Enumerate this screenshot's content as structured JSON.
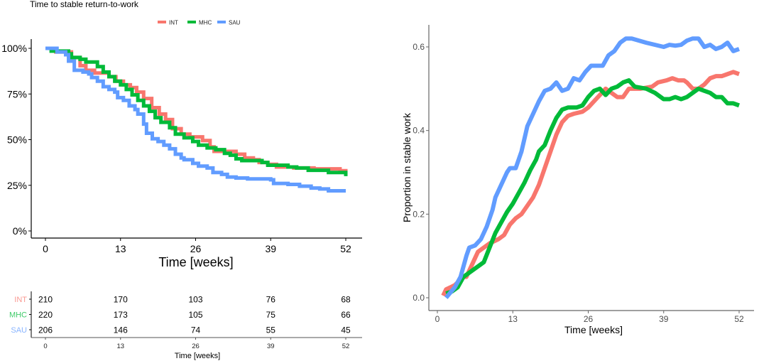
{
  "colors": {
    "INT": "#F8766D",
    "MHC": "#00BA38",
    "SAU": "#619CFF"
  },
  "chart_data": [
    {
      "type": "line",
      "step": true,
      "title": "Time to stable return-to-work",
      "xlabel": "Time [weeks]",
      "ylabel": "",
      "xlim": [
        0,
        52
      ],
      "ylim": [
        0,
        100
      ],
      "xticks": [
        "0",
        "13",
        "26",
        "39",
        "52"
      ],
      "yticks": [
        "0%",
        "25%",
        "50%",
        "75%",
        "100%"
      ],
      "grid": false,
      "legend": {
        "placement": "top",
        "entries": [
          "INT",
          "MHC",
          "SAU"
        ]
      },
      "series": [
        {
          "name": "INT",
          "points": [
            [
              0,
              100
            ],
            [
              1.8,
              98
            ],
            [
              4.5,
              95
            ],
            [
              6,
              90.5
            ],
            [
              7,
              88
            ],
            [
              8.5,
              86.5
            ],
            [
              11,
              84.5
            ],
            [
              12.2,
              82
            ],
            [
              13.5,
              80
            ],
            [
              14.7,
              78.5
            ],
            [
              15.8,
              76
            ],
            [
              17,
              72.5
            ],
            [
              18.4,
              67.5
            ],
            [
              19.7,
              64
            ],
            [
              20.8,
              61
            ],
            [
              22,
              56
            ],
            [
              23.5,
              53
            ],
            [
              25,
              51.5
            ],
            [
              27.2,
              49.5
            ],
            [
              28.5,
              46
            ],
            [
              29.2,
              43.6
            ],
            [
              33,
              42
            ],
            [
              34.5,
              40
            ],
            [
              36,
              39
            ],
            [
              37,
              37.5
            ],
            [
              38.5,
              36.5
            ],
            [
              40,
              35
            ],
            [
              43,
              34.5
            ],
            [
              46.5,
              34
            ],
            [
              51,
              33
            ],
            [
              52,
              32
            ]
          ]
        },
        {
          "name": "MHC",
          "points": [
            [
              0,
              100
            ],
            [
              1,
              98.5
            ],
            [
              4,
              97
            ],
            [
              4.5,
              95
            ],
            [
              6,
              94
            ],
            [
              7,
              92.5
            ],
            [
              9,
              90
            ],
            [
              10,
              87
            ],
            [
              11,
              84.5
            ],
            [
              12,
              82
            ],
            [
              13,
              80
            ],
            [
              14,
              77.5
            ],
            [
              15,
              74.5
            ],
            [
              16,
              71.5
            ],
            [
              17,
              68.5
            ],
            [
              18,
              65.5
            ],
            [
              19,
              62
            ],
            [
              20,
              59.5
            ],
            [
              21.5,
              56.5
            ],
            [
              22.5,
              53
            ],
            [
              24,
              51
            ],
            [
              25.5,
              49
            ],
            [
              26.5,
              47
            ],
            [
              28,
              45.5
            ],
            [
              29.5,
              44.5
            ],
            [
              31,
              42.5
            ],
            [
              32,
              41.5
            ],
            [
              33,
              39.5
            ],
            [
              34,
              38.5
            ],
            [
              37.5,
              37.5
            ],
            [
              38.5,
              36
            ],
            [
              42,
              35
            ],
            [
              43.5,
              34.5
            ],
            [
              45.5,
              33.2
            ],
            [
              49,
              32
            ],
            [
              52,
              30
            ]
          ]
        },
        {
          "name": "SAU",
          "points": [
            [
              0,
              100
            ],
            [
              2,
              98
            ],
            [
              3.5,
              96.5
            ],
            [
              4,
              93
            ],
            [
              5,
              88
            ],
            [
              6.5,
              87
            ],
            [
              7.5,
              86
            ],
            [
              8,
              84
            ],
            [
              9,
              82
            ],
            [
              10,
              79
            ],
            [
              11,
              77.5
            ],
            [
              12,
              76
            ],
            [
              12.5,
              73
            ],
            [
              13.5,
              71.5
            ],
            [
              14.5,
              68.5
            ],
            [
              15.5,
              66.5
            ],
            [
              16,
              64
            ],
            [
              17,
              58.5
            ],
            [
              17.5,
              53.5
            ],
            [
              18.5,
              50.5
            ],
            [
              19.5,
              49
            ],
            [
              20.5,
              47
            ],
            [
              21.5,
              45
            ],
            [
              22.5,
              42
            ],
            [
              23.5,
              40
            ],
            [
              24,
              39
            ],
            [
              25.5,
              37
            ],
            [
              26.5,
              35.5
            ],
            [
              28,
              34.5
            ],
            [
              29,
              32
            ],
            [
              30.5,
              31
            ],
            [
              31.5,
              29.5
            ],
            [
              33,
              29
            ],
            [
              35,
              28.5
            ],
            [
              39,
              28
            ],
            [
              39.5,
              26
            ],
            [
              42,
              25.5
            ],
            [
              44,
              24.5
            ],
            [
              46,
              23.5
            ],
            [
              47.5,
              23
            ],
            [
              49,
              22
            ],
            [
              52,
              22
            ]
          ]
        }
      ]
    },
    {
      "type": "table",
      "xlabel": "Time [weeks]",
      "xticks": [
        "0",
        "13",
        "26",
        "39",
        "52"
      ],
      "rows": [
        {
          "name": "INT",
          "values": [
            "210",
            "170",
            "103",
            "76",
            "68"
          ]
        },
        {
          "name": "MHC",
          "values": [
            "220",
            "173",
            "105",
            "75",
            "66"
          ]
        },
        {
          "name": "SAU",
          "values": [
            "206",
            "146",
            "74",
            "55",
            "45"
          ]
        }
      ]
    },
    {
      "type": "line",
      "xlabel": "Time [weeks]",
      "ylabel": "Proportion in stable work",
      "xlim": [
        0,
        52
      ],
      "ylim": [
        0,
        0.6
      ],
      "xticks": [
        "0",
        "13",
        "26",
        "39",
        "52"
      ],
      "yticks": [
        "0.0",
        "0.2",
        "0.4",
        "0.6"
      ],
      "grid": false,
      "series": [
        {
          "name": "INT",
          "points": [
            [
              1,
              0.005
            ],
            [
              1.5,
              0.02
            ],
            [
              3,
              0.03
            ],
            [
              4.5,
              0.05
            ],
            [
              5,
              0.05
            ],
            [
              6,
              0.08
            ],
            [
              7,
              0.11
            ],
            [
              8,
              0.12
            ],
            [
              9,
              0.13
            ],
            [
              10.5,
              0.14
            ],
            [
              11.5,
              0.15
            ],
            [
              12.5,
              0.175
            ],
            [
              13.5,
              0.19
            ],
            [
              14.5,
              0.2
            ],
            [
              15.5,
              0.22
            ],
            [
              16.5,
              0.24
            ],
            [
              17.5,
              0.27
            ],
            [
              18.5,
              0.31
            ],
            [
              19.5,
              0.35
            ],
            [
              20.5,
              0.39
            ],
            [
              21.5,
              0.42
            ],
            [
              22.5,
              0.435
            ],
            [
              23.5,
              0.44
            ],
            [
              25,
              0.445
            ],
            [
              26,
              0.455
            ],
            [
              27,
              0.47
            ],
            [
              28,
              0.485
            ],
            [
              29,
              0.5
            ],
            [
              30,
              0.49
            ],
            [
              31,
              0.48
            ],
            [
              32,
              0.48
            ],
            [
              33,
              0.5
            ],
            [
              35,
              0.5
            ],
            [
              37,
              0.505
            ],
            [
              38,
              0.515
            ],
            [
              39.5,
              0.52
            ],
            [
              40.5,
              0.525
            ],
            [
              41.5,
              0.52
            ],
            [
              42.5,
              0.52
            ],
            [
              43,
              0.515
            ],
            [
              44,
              0.5
            ],
            [
              45,
              0.5
            ],
            [
              46,
              0.51
            ],
            [
              47,
              0.525
            ],
            [
              48,
              0.53
            ],
            [
              49,
              0.53
            ],
            [
              50,
              0.535
            ],
            [
              51,
              0.54
            ],
            [
              52,
              0.535
            ]
          ]
        },
        {
          "name": "MHC",
          "points": [
            [
              1.5,
              0.01
            ],
            [
              2.5,
              0.015
            ],
            [
              3.5,
              0.025
            ],
            [
              4.5,
              0.05
            ],
            [
              5.5,
              0.06
            ],
            [
              6.5,
              0.07
            ],
            [
              7.5,
              0.08
            ],
            [
              8,
              0.085
            ],
            [
              9,
              0.12
            ],
            [
              10,
              0.155
            ],
            [
              11,
              0.18
            ],
            [
              12,
              0.205
            ],
            [
              13,
              0.225
            ],
            [
              14,
              0.25
            ],
            [
              15,
              0.275
            ],
            [
              16,
              0.305
            ],
            [
              17,
              0.33
            ],
            [
              17.5,
              0.35
            ],
            [
              18.5,
              0.365
            ],
            [
              19.5,
              0.4
            ],
            [
              20.5,
              0.43
            ],
            [
              21.5,
              0.45
            ],
            [
              22.5,
              0.455
            ],
            [
              24,
              0.455
            ],
            [
              25,
              0.46
            ],
            [
              26,
              0.48
            ],
            [
              27,
              0.495
            ],
            [
              28,
              0.5
            ],
            [
              29,
              0.485
            ],
            [
              30,
              0.5
            ],
            [
              31,
              0.505
            ],
            [
              32,
              0.515
            ],
            [
              33,
              0.52
            ],
            [
              34,
              0.505
            ],
            [
              36,
              0.5
            ],
            [
              37.5,
              0.49
            ],
            [
              39,
              0.475
            ],
            [
              40,
              0.475
            ],
            [
              41,
              0.48
            ],
            [
              42,
              0.475
            ],
            [
              43,
              0.48
            ],
            [
              44,
              0.49
            ],
            [
              45,
              0.5
            ],
            [
              46,
              0.495
            ],
            [
              47,
              0.49
            ],
            [
              48,
              0.48
            ],
            [
              49,
              0.48
            ],
            [
              50,
              0.465
            ],
            [
              51,
              0.465
            ],
            [
              52,
              0.46
            ]
          ]
        },
        {
          "name": "SAU",
          "points": [
            [
              1.5,
              0.0
            ],
            [
              3,
              0.025
            ],
            [
              4,
              0.05
            ],
            [
              5,
              0.1
            ],
            [
              5.5,
              0.12
            ],
            [
              6.5,
              0.125
            ],
            [
              7.5,
              0.14
            ],
            [
              8.5,
              0.17
            ],
            [
              9.5,
              0.21
            ],
            [
              10,
              0.24
            ],
            [
              11,
              0.27
            ],
            [
              12,
              0.3
            ],
            [
              12.5,
              0.31
            ],
            [
              13.5,
              0.31
            ],
            [
              14.5,
              0.35
            ],
            [
              15.5,
              0.41
            ],
            [
              16.5,
              0.44
            ],
            [
              17.5,
              0.47
            ],
            [
              18.5,
              0.495
            ],
            [
              19.5,
              0.5
            ],
            [
              20.5,
              0.515
            ],
            [
              21.5,
              0.495
            ],
            [
              22.5,
              0.5
            ],
            [
              23.5,
              0.525
            ],
            [
              24.5,
              0.52
            ],
            [
              25.5,
              0.54
            ],
            [
              26.5,
              0.555
            ],
            [
              28.5,
              0.555
            ],
            [
              29.5,
              0.58
            ],
            [
              30.5,
              0.59
            ],
            [
              31.5,
              0.61
            ],
            [
              32.5,
              0.62
            ],
            [
              33.5,
              0.62
            ],
            [
              36,
              0.61
            ],
            [
              39,
              0.6
            ],
            [
              40,
              0.605
            ],
            [
              41,
              0.603
            ],
            [
              42,
              0.605
            ],
            [
              43,
              0.615
            ],
            [
              44,
              0.62
            ],
            [
              45,
              0.62
            ],
            [
              46,
              0.6
            ],
            [
              47,
              0.605
            ],
            [
              48,
              0.595
            ],
            [
              49,
              0.6
            ],
            [
              50,
              0.61
            ],
            [
              51,
              0.59
            ],
            [
              52,
              0.595
            ]
          ]
        }
      ]
    }
  ]
}
